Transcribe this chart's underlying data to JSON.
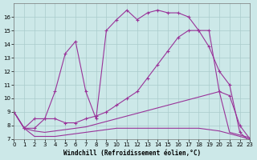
{
  "title": "Windchill (Refroidissement éolien,°C)",
  "bg": "#cce8e8",
  "grid_color": "#aacccc",
  "lc": "#993399",
  "xlim": [
    0,
    23
  ],
  "ylim": [
    7,
    17
  ],
  "yticks": [
    7,
    8,
    9,
    10,
    11,
    12,
    13,
    14,
    15,
    16
  ],
  "xticks": [
    0,
    1,
    2,
    3,
    4,
    5,
    6,
    7,
    8,
    9,
    10,
    11,
    12,
    13,
    14,
    15,
    16,
    17,
    18,
    19,
    20,
    21,
    22,
    23
  ],
  "curve_main": {
    "x": [
      0,
      1,
      2,
      3,
      4,
      5,
      6,
      7,
      8,
      9,
      10,
      11,
      12,
      13,
      14,
      15,
      16,
      17,
      18,
      19,
      20,
      21,
      22,
      23
    ],
    "y": [
      9.0,
      7.8,
      8.5,
      8.5,
      10.5,
      13.3,
      14.2,
      10.5,
      8.5,
      15.0,
      15.8,
      16.5,
      15.8,
      16.3,
      16.5,
      16.3,
      16.3,
      16.0,
      15.0,
      13.8,
      12.0,
      11.0,
      7.5,
      6.8
    ],
    "marker": "+"
  },
  "curve_smooth": {
    "x": [
      0,
      1,
      2,
      3,
      4,
      5,
      6,
      7,
      8,
      9,
      10,
      11,
      12,
      13,
      14,
      15,
      16,
      17,
      18,
      19,
      20,
      21,
      22,
      23
    ],
    "y": [
      9.0,
      7.8,
      7.8,
      8.5,
      8.5,
      8.2,
      8.2,
      8.5,
      8.7,
      9.0,
      9.5,
      10.0,
      10.5,
      11.5,
      12.5,
      13.5,
      14.5,
      15.0,
      15.0,
      15.0,
      10.5,
      10.2,
      8.0,
      7.0
    ],
    "marker": "+"
  },
  "curve_upper_diag": {
    "x": [
      0,
      1,
      2,
      3,
      4,
      5,
      6,
      7,
      8,
      9,
      10,
      11,
      12,
      13,
      14,
      15,
      16,
      17,
      18,
      19,
      20,
      21,
      22,
      23
    ],
    "y": [
      9.0,
      7.8,
      7.6,
      7.5,
      7.6,
      7.7,
      7.8,
      7.9,
      8.1,
      8.3,
      8.5,
      8.7,
      8.9,
      9.1,
      9.3,
      9.5,
      9.7,
      9.9,
      10.1,
      10.3,
      10.5,
      7.5,
      7.3,
      7.1
    ],
    "marker": null
  },
  "curve_lower_flat": {
    "x": [
      0,
      1,
      2,
      3,
      4,
      5,
      6,
      7,
      8,
      9,
      10,
      11,
      12,
      13,
      14,
      15,
      16,
      17,
      18,
      19,
      20,
      21,
      22,
      23
    ],
    "y": [
      9.0,
      7.8,
      7.2,
      7.2,
      7.2,
      7.3,
      7.4,
      7.5,
      7.6,
      7.7,
      7.8,
      7.8,
      7.8,
      7.8,
      7.8,
      7.8,
      7.8,
      7.8,
      7.8,
      7.7,
      7.6,
      7.4,
      7.2,
      7.0
    ],
    "marker": null
  }
}
